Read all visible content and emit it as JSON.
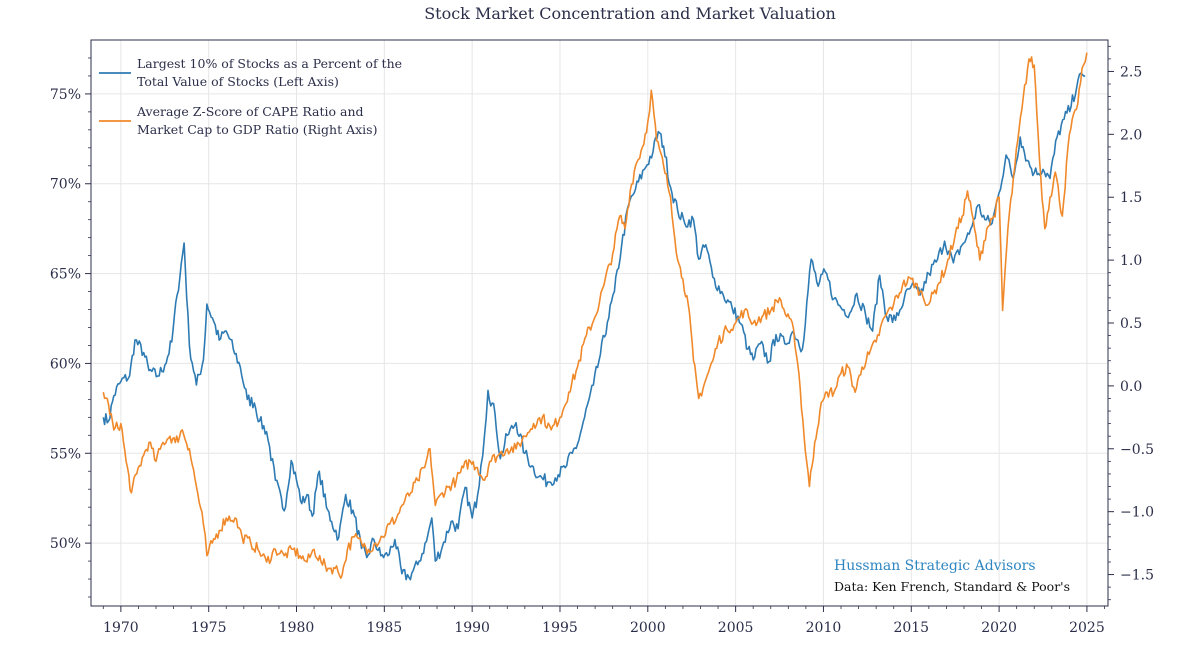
{
  "chart_data": {
    "type": "line",
    "title": "Stock Market Concentration and Market Valuation",
    "x_ticks": [
      "1970",
      "1975",
      "1980",
      "1985",
      "1990",
      "1995",
      "2000",
      "2005",
      "2010",
      "2015",
      "2020",
      "2025"
    ],
    "xlim": [
      1968.3,
      2026.2
    ],
    "y_left": {
      "ticks": [
        "50%",
        "55%",
        "60%",
        "65%",
        "70%",
        "75%"
      ],
      "tick_values": [
        50,
        55,
        60,
        65,
        70,
        75
      ],
      "ylim": [
        46.5,
        78.0
      ]
    },
    "y_right": {
      "ticks": [
        "−1.5",
        "−1.0",
        "−0.5",
        "0.0",
        "0.5",
        "1.0",
        "1.5",
        "2.0",
        "2.5"
      ],
      "tick_values": [
        -1.5,
        -1.0,
        -0.5,
        0.0,
        0.5,
        1.0,
        1.5,
        2.0,
        2.5
      ],
      "ylim": [
        -1.75,
        2.75
      ]
    },
    "grid": true,
    "legend_position": "top-left",
    "series": [
      {
        "name": "Largest 10% of Stocks as a Percent of the Total Value of Stocks (Left Axis)",
        "axis": "left",
        "color": "#2e7bb4",
        "points": [
          [
            1969.0,
            57.0
          ],
          [
            1969.3,
            56.8
          ],
          [
            1969.6,
            58.2
          ],
          [
            1970.0,
            59.0
          ],
          [
            1970.5,
            59.3
          ],
          [
            1970.8,
            61.3
          ],
          [
            1971.3,
            60.6
          ],
          [
            1971.6,
            59.6
          ],
          [
            1972.1,
            59.3
          ],
          [
            1972.5,
            59.9
          ],
          [
            1972.9,
            61.2
          ],
          [
            1973.2,
            63.8
          ],
          [
            1973.6,
            66.7
          ],
          [
            1973.9,
            61.0
          ],
          [
            1974.3,
            58.8
          ],
          [
            1974.7,
            60.2
          ],
          [
            1974.9,
            63.3
          ],
          [
            1975.3,
            62.3
          ],
          [
            1975.6,
            61.3
          ],
          [
            1976.0,
            61.8
          ],
          [
            1976.4,
            60.8
          ],
          [
            1976.8,
            59.8
          ],
          [
            1977.2,
            58.0
          ],
          [
            1977.6,
            57.8
          ],
          [
            1977.9,
            56.8
          ],
          [
            1978.3,
            56.2
          ],
          [
            1978.8,
            53.5
          ],
          [
            1979.3,
            51.8
          ],
          [
            1979.7,
            54.6
          ],
          [
            1980.0,
            53.5
          ],
          [
            1980.3,
            52.2
          ],
          [
            1980.6,
            52.7
          ],
          [
            1980.9,
            51.5
          ],
          [
            1981.3,
            54.0
          ],
          [
            1981.7,
            52.0
          ],
          [
            1982.0,
            51.2
          ],
          [
            1982.4,
            50.3
          ],
          [
            1982.8,
            52.7
          ],
          [
            1983.3,
            51.5
          ],
          [
            1983.7,
            49.7
          ],
          [
            1984.0,
            49.2
          ],
          [
            1984.4,
            50.2
          ],
          [
            1984.8,
            49.3
          ],
          [
            1985.2,
            49.3
          ],
          [
            1985.6,
            50.2
          ],
          [
            1986.0,
            48.3
          ],
          [
            1986.4,
            48.1
          ],
          [
            1986.9,
            48.8
          ],
          [
            1987.4,
            50.1
          ],
          [
            1987.7,
            51.4
          ],
          [
            1987.9,
            49.0
          ],
          [
            1988.3,
            49.8
          ],
          [
            1988.8,
            51.2
          ],
          [
            1989.2,
            50.8
          ],
          [
            1989.6,
            53.1
          ],
          [
            1990.0,
            51.4
          ],
          [
            1990.3,
            52.6
          ],
          [
            1990.5,
            54.3
          ],
          [
            1990.7,
            56.0
          ],
          [
            1990.9,
            58.5
          ],
          [
            1991.3,
            57.2
          ],
          [
            1991.6,
            54.7
          ],
          [
            1992.0,
            56.0
          ],
          [
            1992.5,
            56.7
          ],
          [
            1993.0,
            55.0
          ],
          [
            1993.4,
            54.3
          ],
          [
            1993.8,
            53.7
          ],
          [
            1994.3,
            53.4
          ],
          [
            1994.9,
            53.8
          ],
          [
            1995.3,
            54.2
          ],
          [
            1995.7,
            55.0
          ],
          [
            1996.0,
            55.5
          ],
          [
            1996.4,
            57.0
          ],
          [
            1996.9,
            58.8
          ],
          [
            1997.3,
            60.5
          ],
          [
            1997.7,
            62.3
          ],
          [
            1998.1,
            64.0
          ],
          [
            1998.5,
            66.5
          ],
          [
            1998.9,
            68.8
          ],
          [
            1999.3,
            69.7
          ],
          [
            1999.8,
            70.8
          ],
          [
            2000.3,
            71.8
          ],
          [
            2000.6,
            72.9
          ],
          [
            2000.9,
            72.1
          ],
          [
            2001.3,
            69.8
          ],
          [
            2001.7,
            68.5
          ],
          [
            2002.1,
            67.8
          ],
          [
            2002.6,
            68.0
          ],
          [
            2002.9,
            65.8
          ],
          [
            2003.3,
            66.6
          ],
          [
            2003.7,
            64.8
          ],
          [
            2004.3,
            63.8
          ],
          [
            2004.8,
            63.1
          ],
          [
            2005.3,
            62.2
          ],
          [
            2005.7,
            60.8
          ],
          [
            2006.0,
            60.2
          ],
          [
            2006.4,
            61.1
          ],
          [
            2006.9,
            60.1
          ],
          [
            2007.3,
            61.6
          ],
          [
            2007.8,
            61.1
          ],
          [
            2008.3,
            61.8
          ],
          [
            2008.8,
            60.8
          ],
          [
            2009.3,
            65.8
          ],
          [
            2009.7,
            64.3
          ],
          [
            2010.1,
            65.1
          ],
          [
            2010.6,
            63.6
          ],
          [
            2011.0,
            63.1
          ],
          [
            2011.5,
            62.8
          ],
          [
            2011.9,
            63.9
          ],
          [
            2012.4,
            62.7
          ],
          [
            2012.8,
            61.8
          ],
          [
            2013.2,
            64.9
          ],
          [
            2013.6,
            62.6
          ],
          [
            2014.1,
            62.4
          ],
          [
            2014.6,
            63.6
          ],
          [
            2015.0,
            64.3
          ],
          [
            2015.5,
            63.8
          ],
          [
            2016.0,
            65.0
          ],
          [
            2016.5,
            65.8
          ],
          [
            2016.9,
            66.8
          ],
          [
            2017.4,
            65.6
          ],
          [
            2017.9,
            66.6
          ],
          [
            2018.3,
            67.2
          ],
          [
            2018.8,
            68.8
          ],
          [
            2019.2,
            68.0
          ],
          [
            2019.6,
            67.8
          ],
          [
            2020.0,
            69.5
          ],
          [
            2020.4,
            71.6
          ],
          [
            2020.8,
            70.3
          ],
          [
            2021.2,
            72.6
          ],
          [
            2021.6,
            71.3
          ],
          [
            2022.0,
            70.6
          ],
          [
            2022.5,
            70.8
          ],
          [
            2022.9,
            70.3
          ],
          [
            2023.3,
            72.6
          ],
          [
            2023.7,
            73.6
          ],
          [
            2024.1,
            74.3
          ],
          [
            2024.5,
            75.8
          ],
          [
            2024.9,
            76.0
          ]
        ]
      },
      {
        "name": "Average Z-Score of CAPE Ratio and Market Cap to GDP Ratio (Right Axis)",
        "axis": "right",
        "color": "#f0892a",
        "points": [
          [
            1969.0,
            -0.05
          ],
          [
            1969.3,
            -0.15
          ],
          [
            1969.6,
            -0.35
          ],
          [
            1970.0,
            -0.3
          ],
          [
            1970.3,
            -0.6
          ],
          [
            1970.6,
            -0.85
          ],
          [
            1970.9,
            -0.7
          ],
          [
            1971.3,
            -0.55
          ],
          [
            1971.6,
            -0.45
          ],
          [
            1972.0,
            -0.6
          ],
          [
            1972.4,
            -0.45
          ],
          [
            1972.8,
            -0.4
          ],
          [
            1973.1,
            -0.45
          ],
          [
            1973.5,
            -0.35
          ],
          [
            1973.9,
            -0.5
          ],
          [
            1974.3,
            -0.8
          ],
          [
            1974.7,
            -1.1
          ],
          [
            1974.9,
            -1.35
          ],
          [
            1975.2,
            -1.25
          ],
          [
            1975.6,
            -1.15
          ],
          [
            1976.0,
            -1.05
          ],
          [
            1976.5,
            -1.05
          ],
          [
            1976.9,
            -1.2
          ],
          [
            1977.4,
            -1.25
          ],
          [
            1977.8,
            -1.3
          ],
          [
            1978.3,
            -1.4
          ],
          [
            1978.8,
            -1.3
          ],
          [
            1979.3,
            -1.35
          ],
          [
            1979.8,
            -1.3
          ],
          [
            1980.2,
            -1.35
          ],
          [
            1980.6,
            -1.4
          ],
          [
            1981.0,
            -1.3
          ],
          [
            1981.4,
            -1.4
          ],
          [
            1981.8,
            -1.45
          ],
          [
            1982.2,
            -1.45
          ],
          [
            1982.6,
            -1.5
          ],
          [
            1982.9,
            -1.3
          ],
          [
            1983.3,
            -1.2
          ],
          [
            1983.7,
            -1.25
          ],
          [
            1984.1,
            -1.3
          ],
          [
            1984.5,
            -1.25
          ],
          [
            1984.9,
            -1.2
          ],
          [
            1985.3,
            -1.1
          ],
          [
            1985.7,
            -1.05
          ],
          [
            1986.0,
            -0.95
          ],
          [
            1986.5,
            -0.85
          ],
          [
            1986.9,
            -0.75
          ],
          [
            1987.3,
            -0.65
          ],
          [
            1987.6,
            -0.5
          ],
          [
            1987.9,
            -0.95
          ],
          [
            1988.3,
            -0.85
          ],
          [
            1988.7,
            -0.8
          ],
          [
            1989.1,
            -0.75
          ],
          [
            1989.5,
            -0.65
          ],
          [
            1989.9,
            -0.6
          ],
          [
            1990.3,
            -0.65
          ],
          [
            1990.7,
            -0.75
          ],
          [
            1991.0,
            -0.6
          ],
          [
            1991.5,
            -0.55
          ],
          [
            1992.0,
            -0.5
          ],
          [
            1992.5,
            -0.5
          ],
          [
            1993.0,
            -0.4
          ],
          [
            1993.5,
            -0.3
          ],
          [
            1994.0,
            -0.25
          ],
          [
            1994.5,
            -0.35
          ],
          [
            1995.0,
            -0.25
          ],
          [
            1995.5,
            -0.05
          ],
          [
            1996.0,
            0.15
          ],
          [
            1996.5,
            0.4
          ],
          [
            1997.0,
            0.55
          ],
          [
            1997.5,
            0.8
          ],
          [
            1998.0,
            1.05
          ],
          [
            1998.4,
            1.35
          ],
          [
            1998.7,
            1.25
          ],
          [
            1999.0,
            1.55
          ],
          [
            1999.3,
            1.75
          ],
          [
            1999.7,
            1.9
          ],
          [
            2000.0,
            2.1
          ],
          [
            2000.2,
            2.35
          ],
          [
            2000.5,
            1.95
          ],
          [
            2000.9,
            1.75
          ],
          [
            2001.3,
            1.5
          ],
          [
            2001.7,
            1.0
          ],
          [
            2002.0,
            0.85
          ],
          [
            2002.3,
            0.65
          ],
          [
            2002.6,
            0.2
          ],
          [
            2002.9,
            -0.1
          ],
          [
            2003.3,
            0.05
          ],
          [
            2003.7,
            0.2
          ],
          [
            2004.0,
            0.35
          ],
          [
            2004.5,
            0.45
          ],
          [
            2005.0,
            0.5
          ],
          [
            2005.5,
            0.6
          ],
          [
            2006.0,
            0.5
          ],
          [
            2006.5,
            0.55
          ],
          [
            2007.0,
            0.6
          ],
          [
            2007.5,
            0.7
          ],
          [
            2007.9,
            0.55
          ],
          [
            2008.3,
            0.45
          ],
          [
            2008.6,
            0.1
          ],
          [
            2008.9,
            -0.4
          ],
          [
            2009.2,
            -0.8
          ],
          [
            2009.5,
            -0.45
          ],
          [
            2009.8,
            -0.2
          ],
          [
            2010.2,
            -0.05
          ],
          [
            2010.6,
            -0.05
          ],
          [
            2011.0,
            0.1
          ],
          [
            2011.4,
            0.15
          ],
          [
            2011.8,
            -0.05
          ],
          [
            2012.2,
            0.15
          ],
          [
            2012.6,
            0.25
          ],
          [
            2013.0,
            0.35
          ],
          [
            2013.5,
            0.55
          ],
          [
            2014.0,
            0.65
          ],
          [
            2014.5,
            0.8
          ],
          [
            2015.0,
            0.85
          ],
          [
            2015.5,
            0.75
          ],
          [
            2016.0,
            0.65
          ],
          [
            2016.5,
            0.8
          ],
          [
            2017.0,
            0.95
          ],
          [
            2017.5,
            1.2
          ],
          [
            2017.9,
            1.35
          ],
          [
            2018.2,
            1.55
          ],
          [
            2018.6,
            1.25
          ],
          [
            2018.9,
            1.0
          ],
          [
            2019.3,
            1.25
          ],
          [
            2019.7,
            1.35
          ],
          [
            2020.0,
            1.5
          ],
          [
            2020.2,
            0.6
          ],
          [
            2020.5,
            1.25
          ],
          [
            2020.9,
            1.75
          ],
          [
            2021.3,
            2.2
          ],
          [
            2021.7,
            2.6
          ],
          [
            2022.0,
            2.55
          ],
          [
            2022.3,
            1.8
          ],
          [
            2022.6,
            1.25
          ],
          [
            2022.9,
            1.5
          ],
          [
            2023.2,
            1.7
          ],
          [
            2023.6,
            1.35
          ],
          [
            2024.0,
            2.0
          ],
          [
            2024.4,
            2.2
          ],
          [
            2024.8,
            2.55
          ],
          [
            2025.0,
            2.65
          ]
        ]
      }
    ],
    "annotations": {
      "brand": "Hussman Strategic Advisors",
      "source": "Data: Ken French, Standard & Poor's"
    }
  },
  "colors": {
    "left_series": "#2e7bb4",
    "right_series": "#f0892a",
    "grid": "#e6e6e6",
    "brand": "#2e86c1",
    "axis": "#2b2f4a"
  },
  "legend_items": [
    {
      "lines": [
        "Largest 10% of Stocks as a Percent of the",
        "Total Value of Stocks (Left Axis)"
      ]
    },
    {
      "lines": [
        "Average Z-Score of CAPE Ratio and",
        "Market Cap to GDP Ratio (Right Axis)"
      ]
    }
  ]
}
